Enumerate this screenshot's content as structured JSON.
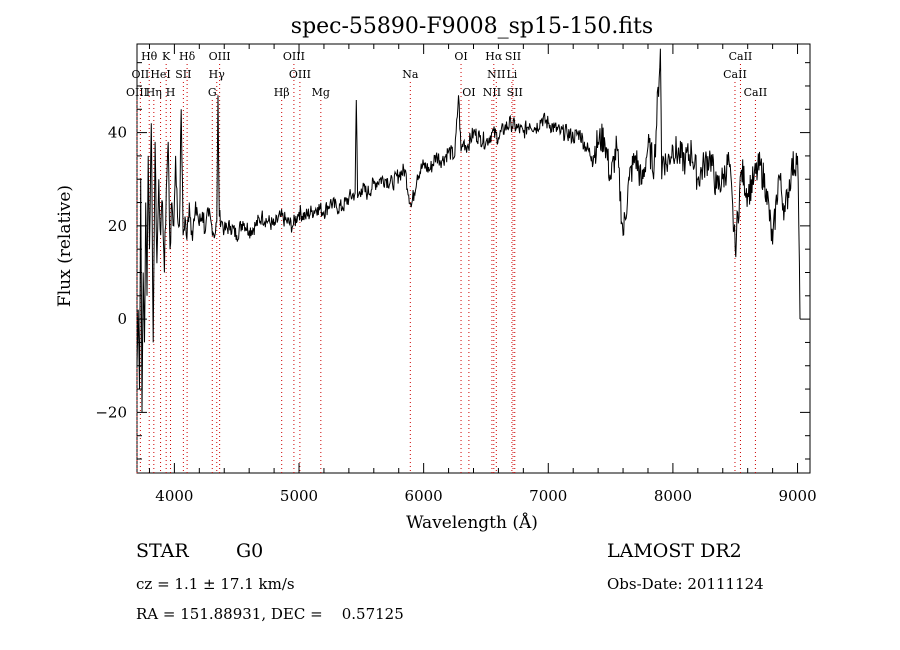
{
  "chart_data": {
    "type": "line",
    "title": "spec-55890-F9008_sp15-150.fits",
    "xlabel": "Wavelength (Å)",
    "ylabel": "Flux (relative)",
    "xlim": [
      3700,
      9100
    ],
    "ylim": [
      -33,
      59
    ],
    "x_ticks": [
      4000,
      5000,
      6000,
      7000,
      8000,
      9000
    ],
    "y_ticks": [
      -20,
      0,
      20,
      40
    ],
    "grid": false,
    "series": [
      {
        "x": [
          3700,
          3710,
          3720,
          3730,
          3740,
          3750,
          3760,
          3770,
          3780,
          3790,
          3800,
          3815,
          3830,
          3845,
          3860,
          3875,
          3890,
          3905,
          3920,
          3935,
          3950,
          3965,
          3980,
          3995,
          4010,
          4025,
          4040,
          4055,
          4070,
          4085,
          4100,
          4120,
          4140,
          4160,
          4180,
          4200,
          4225,
          4250,
          4275,
          4300,
          4325,
          4340,
          4350,
          4360,
          4380,
          4400,
          4450,
          4500,
          4550,
          4600,
          4650,
          4700,
          4750,
          4800,
          4850,
          4900,
          4950,
          5000,
          5050,
          5100,
          5150,
          5200,
          5250,
          5300,
          5350,
          5400,
          5450,
          5460,
          5470,
          5500,
          5550,
          5600,
          5650,
          5700,
          5750,
          5800,
          5850,
          5900,
          5950,
          6000,
          6050,
          6100,
          6150,
          6200,
          6250,
          6280,
          6300,
          6320,
          6350,
          6400,
          6450,
          6500,
          6550,
          6600,
          6650,
          6700,
          6750,
          6800,
          6850,
          6900,
          6950,
          7000,
          7050,
          7100,
          7150,
          7200,
          7250,
          7300,
          7350,
          7400,
          7450,
          7500,
          7550,
          7600,
          7650,
          7700,
          7750,
          7800,
          7850,
          7900,
          7910,
          7920,
          7950,
          8000,
          8050,
          8100,
          8150,
          8200,
          8250,
          8300,
          8350,
          8400,
          8450,
          8500,
          8550,
          8600,
          8650,
          8700,
          8750,
          8800,
          8850,
          8900,
          8950,
          9000,
          9010,
          9020
        ],
        "y": [
          -10,
          2,
          -15,
          30,
          -20,
          10,
          -5,
          25,
          5,
          35,
          15,
          42,
          -5,
          38,
          12,
          30,
          18,
          25,
          10,
          28,
          38,
          15,
          25,
          20,
          35,
          22,
          20,
          45,
          18,
          22,
          17,
          25,
          19,
          21,
          24,
          20,
          23,
          19,
          22,
          20,
          18,
          21,
          48,
          22,
          21,
          19,
          20,
          18,
          21,
          19,
          20,
          22,
          21,
          20,
          22,
          21,
          20,
          23,
          22,
          23,
          24,
          23,
          25,
          24,
          24,
          26,
          27,
          47,
          26,
          28,
          27,
          29,
          30,
          30,
          29,
          31,
          32,
          24,
          31,
          33,
          32,
          35,
          34,
          36,
          35,
          48,
          36,
          38,
          37,
          40,
          39,
          38,
          40,
          39,
          41,
          42,
          41,
          40,
          42,
          41,
          43,
          42,
          41,
          40,
          40,
          39,
          40,
          37,
          35,
          38,
          39,
          30,
          37,
          18,
          30,
          35,
          29,
          37,
          33,
          58,
          30,
          35,
          33,
          37,
          35,
          34,
          36,
          30,
          33,
          35,
          28,
          30,
          34,
          15,
          32,
          27,
          30,
          33,
          28,
          16,
          31,
          23,
          32,
          35,
          20,
          0
        ],
        "style": "line",
        "color": "#000000"
      }
    ],
    "spectral_lines": [
      {
        "label": "Hθ",
        "wavelength": 3798,
        "row": 1
      },
      {
        "label": "K",
        "wavelength": 3934,
        "row": 1
      },
      {
        "label": "Hδ",
        "wavelength": 4102,
        "row": 1
      },
      {
        "label": "OIII",
        "wavelength": 4363,
        "row": 1
      },
      {
        "label": "OIII",
        "wavelength": 4959,
        "row": 1
      },
      {
        "label": "OI",
        "wavelength": 6300,
        "row": 1
      },
      {
        "label": "Hα",
        "wavelength": 6563,
        "row": 1
      },
      {
        "label": "SII",
        "wavelength": 6717,
        "row": 1
      },
      {
        "label": "CaII",
        "wavelength": 8542,
        "row": 1
      },
      {
        "label": "OII",
        "wavelength": 3727,
        "row": 2
      },
      {
        "label": "HeI",
        "wavelength": 3889,
        "row": 2
      },
      {
        "label": "SII",
        "wavelength": 4072,
        "row": 2
      },
      {
        "label": "Hγ",
        "wavelength": 4340,
        "row": 2
      },
      {
        "label": "OIII",
        "wavelength": 5007,
        "row": 2
      },
      {
        "label": "Na",
        "wavelength": 5893,
        "row": 2
      },
      {
        "label": "NII",
        "wavelength": 6583,
        "row": 2
      },
      {
        "label": "Li",
        "wavelength": 6708,
        "row": 2
      },
      {
        "label": "CaII",
        "wavelength": 8498,
        "row": 2
      },
      {
        "label": "OIII",
        "wavelength": 3700,
        "row": 3
      },
      {
        "label": "Hη",
        "wavelength": 3835,
        "row": 3
      },
      {
        "label": "H",
        "wavelength": 3969,
        "row": 3
      },
      {
        "label": "G",
        "wavelength": 4304,
        "row": 3
      },
      {
        "label": "Hβ",
        "wavelength": 4861,
        "row": 3
      },
      {
        "label": "Mg",
        "wavelength": 5175,
        "row": 3
      },
      {
        "label": "OI",
        "wavelength": 6363,
        "row": 3
      },
      {
        "label": "NII",
        "wavelength": 6548,
        "row": 3
      },
      {
        "label": "SII",
        "wavelength": 6731,
        "row": 3
      },
      {
        "label": "CaII",
        "wavelength": 8662,
        "row": 3
      }
    ],
    "line_marker_color": "#cc0000"
  },
  "info": {
    "object_class": "STAR",
    "subclass": "G0",
    "survey": "LAMOST DR2",
    "cz": "cz = 1.1 ± 17.1 km/s",
    "obs_date": "Obs-Date: 20111124",
    "coords": "RA = 151.88931, DEC =    0.57125"
  }
}
